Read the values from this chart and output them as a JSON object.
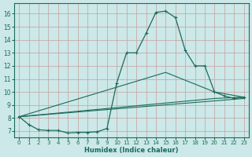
{
  "xlabel": "Humidex (Indice chaleur)",
  "xlim": [
    -0.5,
    23.5
  ],
  "ylim": [
    6.5,
    16.8
  ],
  "yticks": [
    7,
    8,
    9,
    10,
    11,
    12,
    13,
    14,
    15,
    16
  ],
  "xticks": [
    0,
    1,
    2,
    3,
    4,
    5,
    6,
    7,
    8,
    9,
    10,
    11,
    12,
    13,
    14,
    15,
    16,
    17,
    18,
    19,
    20,
    21,
    22,
    23
  ],
  "bg_color": "#cce8e8",
  "grid_color": "#c4a0a0",
  "line_color": "#1a6b5a",
  "main_line": {
    "x": [
      0,
      1,
      2,
      3,
      4,
      5,
      6,
      7,
      8,
      9,
      10,
      11,
      12,
      13,
      14,
      15,
      16,
      17,
      18,
      19,
      20,
      21,
      22,
      23
    ],
    "y": [
      8.1,
      7.5,
      7.1,
      7.05,
      7.05,
      6.85,
      6.9,
      6.9,
      6.95,
      7.2,
      10.7,
      13.0,
      13.0,
      14.5,
      16.1,
      16.2,
      15.7,
      13.2,
      12.0,
      12.0,
      10.0,
      9.7,
      9.5,
      9.6
    ]
  },
  "trend_lines": [
    {
      "x": [
        0,
        23
      ],
      "y": [
        8.1,
        9.5
      ]
    },
    {
      "x": [
        0,
        20,
        23
      ],
      "y": [
        8.1,
        9.5,
        9.6
      ]
    },
    {
      "x": [
        0,
        15,
        20,
        23
      ],
      "y": [
        8.1,
        11.5,
        10.0,
        9.6
      ]
    }
  ]
}
